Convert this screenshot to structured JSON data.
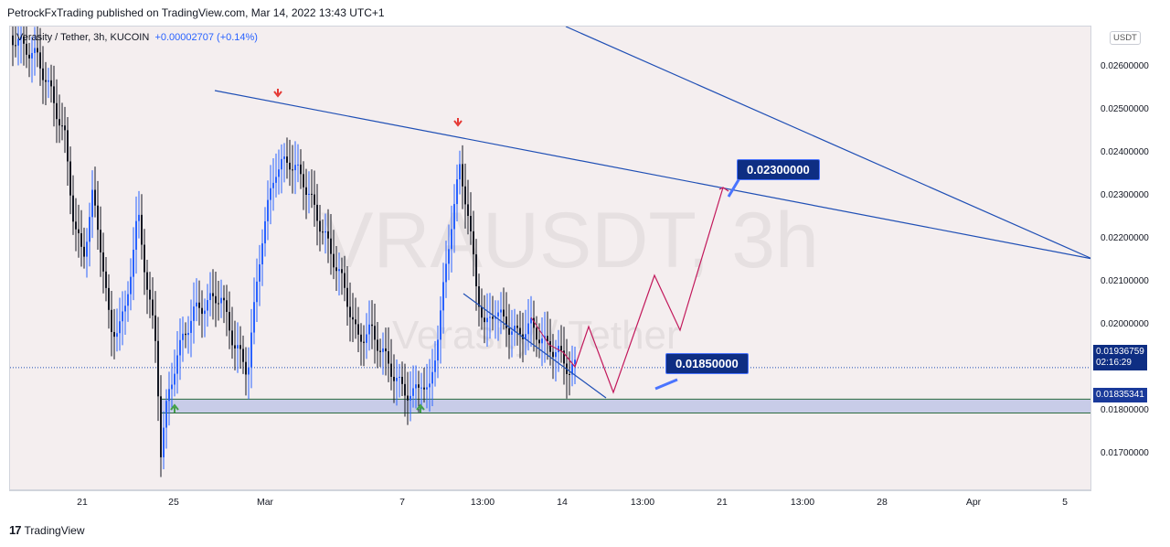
{
  "header": {
    "published": "PetrockFxTrading published on TradingView.com, Mar 14, 2022 13:43 UTC+1"
  },
  "legend": {
    "symbol": "Verasity / Tether, 3h, KUCOIN",
    "change": "+0.00002707 (+0.14%)"
  },
  "watermark": {
    "ticker": "VRAUSDT, 3h",
    "name": "Verasity / Tether"
  },
  "footer": {
    "brand": "TradingView"
  },
  "colors": {
    "up": "#2962ff",
    "down": "#131722",
    "trend": "#1f4fb5",
    "projection": "#c2185b",
    "zone": "#c8cce8",
    "label_bg": "#0e2e83",
    "background": "#f4eeef"
  },
  "chart_data": {
    "type": "candlestick",
    "title": "VRAUSDT, 3h",
    "ylim": [
      0.0166,
      0.027
    ],
    "currency": "USDT",
    "x_ticks": [
      "21",
      "25",
      "Mar",
      "7",
      "13:00",
      "14",
      "13:00",
      "21",
      "13:00",
      "28",
      "Apr",
      "5"
    ],
    "y_ticks": [
      "0.02600000",
      "0.02500000",
      "0.02400000",
      "0.02300000",
      "0.02200000",
      "0.02100000",
      "0.02000000",
      "0.01800000",
      "0.01700000"
    ],
    "last_price": "0.01936759",
    "countdown": "02:16:29",
    "support_price": "0.01835341",
    "zone": [
      0.01835,
      0.01866
    ],
    "targets": [
      "0.02300000",
      "0.01850000"
    ]
  }
}
